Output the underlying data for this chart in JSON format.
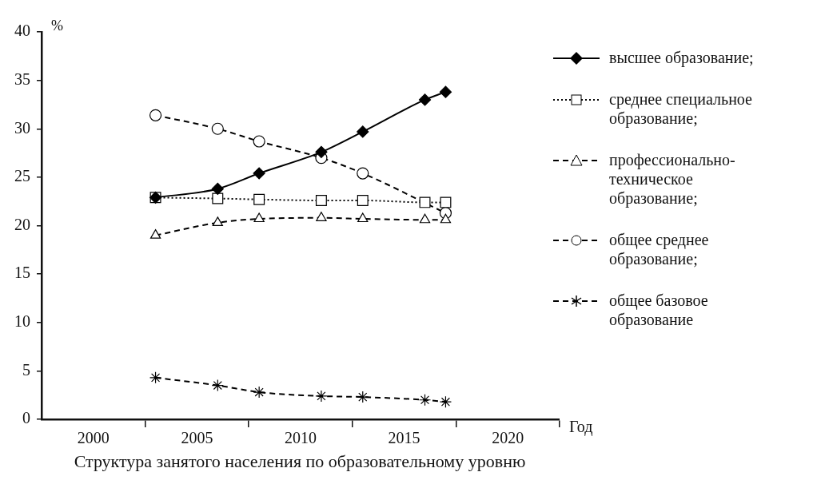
{
  "chart_data": {
    "type": "line",
    "title": "Структура занятого населения по образовательному уровню",
    "xlabel": "Год",
    "ylabel": "%",
    "x": [
      2003,
      2006,
      2008,
      2011,
      2013,
      2016,
      2017
    ],
    "xlim": [
      1997.5,
      2022.5
    ],
    "xticks": [
      2000,
      {
        "value": 2002.5,
        "label": null
      },
      2005,
      {
        "value": 2007.5,
        "label": null
      },
      2010,
      {
        "value": 2012.5,
        "label": null
      },
      2015,
      {
        "value": 2017.5,
        "label": null
      },
      2020,
      {
        "value": 2022.5,
        "label": null
      }
    ],
    "ylim": [
      0,
      40
    ],
    "yticks": [
      0,
      5,
      10,
      15,
      20,
      25,
      30,
      35,
      40
    ],
    "grid": false,
    "legend": "right",
    "series": [
      {
        "name": "высшее образование;",
        "color": "#000000",
        "marker": "diamond",
        "line_style": "solid",
        "values": [
          22.9,
          23.8,
          25.4,
          27.6,
          29.7,
          33.0,
          33.8
        ]
      },
      {
        "name": "среднее специальное образование;",
        "color": "#000000",
        "marker": "square",
        "line_style": "dotted",
        "values": [
          22.9,
          22.8,
          22.7,
          22.6,
          22.6,
          22.4,
          22.4
        ]
      },
      {
        "name": "профессионально-техническое образование;",
        "color": "#000000",
        "marker": "triangle",
        "line_style": "dashed",
        "values": [
          19.0,
          20.3,
          20.7,
          20.8,
          20.7,
          20.6,
          20.6
        ]
      },
      {
        "name": "общее среднее образование;",
        "color": "#000000",
        "marker": "circle",
        "line_style": "dashed",
        "values": [
          31.4,
          30.0,
          28.7,
          27.0,
          25.4,
          null,
          21.3
        ]
      },
      {
        "name": "общее базовое образование",
        "color": "#000000",
        "marker": "cross",
        "line_style": "dashed",
        "values": [
          4.3,
          3.5,
          2.8,
          2.4,
          2.3,
          2.0,
          1.8
        ]
      }
    ]
  }
}
